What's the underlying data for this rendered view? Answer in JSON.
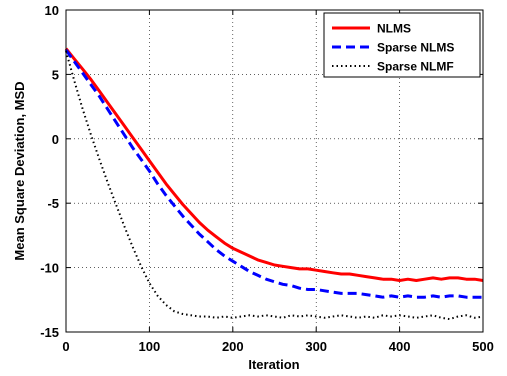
{
  "chart_data": {
    "type": "line",
    "xlabel": "Iteration",
    "ylabel": "Mean Square Deviation, MSD",
    "xlim": [
      0,
      500
    ],
    "ylim": [
      -15,
      10
    ],
    "xticks": [
      0,
      100,
      200,
      300,
      400,
      500
    ],
    "yticks": [
      -15,
      -10,
      -5,
      0,
      5,
      10
    ],
    "grid": true,
    "legend_position": "top-right",
    "series": [
      {
        "name": "NLMS",
        "color": "#ff0000",
        "style": "solid",
        "x": [
          0,
          10,
          20,
          30,
          40,
          50,
          60,
          70,
          80,
          90,
          100,
          110,
          120,
          130,
          140,
          150,
          160,
          170,
          180,
          190,
          200,
          210,
          220,
          230,
          240,
          250,
          260,
          270,
          280,
          290,
          300,
          310,
          320,
          330,
          340,
          350,
          360,
          370,
          380,
          390,
          400,
          410,
          420,
          430,
          440,
          450,
          460,
          470,
          480,
          490,
          500
        ],
        "y": [
          7,
          6.2,
          5.4,
          4.6,
          3.7,
          2.8,
          1.9,
          1.0,
          0.1,
          -0.8,
          -1.7,
          -2.6,
          -3.5,
          -4.3,
          -5.1,
          -5.8,
          -6.5,
          -7.1,
          -7.6,
          -8.1,
          -8.5,
          -8.8,
          -9.1,
          -9.4,
          -9.6,
          -9.8,
          -9.9,
          -10.0,
          -10.1,
          -10.1,
          -10.2,
          -10.3,
          -10.4,
          -10.5,
          -10.5,
          -10.6,
          -10.7,
          -10.8,
          -10.9,
          -10.9,
          -11.0,
          -10.9,
          -11.0,
          -10.9,
          -10.8,
          -10.9,
          -10.8,
          -10.8,
          -10.9,
          -10.9,
          -11.0
        ]
      },
      {
        "name": "Sparse NLMS",
        "color": "#0000ff",
        "style": "dashed",
        "x": [
          0,
          10,
          20,
          30,
          40,
          50,
          60,
          70,
          80,
          90,
          100,
          110,
          120,
          130,
          140,
          150,
          160,
          170,
          180,
          190,
          200,
          210,
          220,
          230,
          240,
          250,
          260,
          270,
          280,
          290,
          300,
          310,
          320,
          330,
          340,
          350,
          360,
          370,
          380,
          390,
          400,
          410,
          420,
          430,
          440,
          450,
          460,
          470,
          480,
          490,
          500
        ],
        "y": [
          6.9,
          6.0,
          5.1,
          4.2,
          3.3,
          2.3,
          1.3,
          0.3,
          -0.7,
          -1.6,
          -2.5,
          -3.5,
          -4.4,
          -5.2,
          -6.0,
          -6.7,
          -7.4,
          -8.0,
          -8.6,
          -9.1,
          -9.5,
          -9.9,
          -10.3,
          -10.6,
          -10.9,
          -11.1,
          -11.3,
          -11.4,
          -11.6,
          -11.7,
          -11.7,
          -11.8,
          -11.9,
          -12.0,
          -12.0,
          -12.0,
          -12.1,
          -12.2,
          -12.3,
          -12.2,
          -12.3,
          -12.2,
          -12.3,
          -12.3,
          -12.2,
          -12.3,
          -12.2,
          -12.2,
          -12.3,
          -12.3,
          -12.3
        ]
      },
      {
        "name": "Sparse NLMF",
        "color": "#000000",
        "style": "dotted",
        "x": [
          0,
          10,
          20,
          30,
          40,
          50,
          60,
          70,
          80,
          90,
          100,
          110,
          120,
          130,
          140,
          150,
          160,
          170,
          180,
          190,
          200,
          210,
          220,
          230,
          240,
          250,
          260,
          270,
          280,
          290,
          300,
          310,
          320,
          330,
          340,
          350,
          360,
          370,
          380,
          390,
          400,
          410,
          420,
          430,
          440,
          450,
          460,
          470,
          480,
          490,
          500
        ],
        "y": [
          6.8,
          4.5,
          2.3,
          0.3,
          -1.6,
          -3.4,
          -5.1,
          -6.8,
          -8.4,
          -9.9,
          -11.2,
          -12.2,
          -12.9,
          -13.4,
          -13.6,
          -13.7,
          -13.8,
          -13.8,
          -13.9,
          -13.8,
          -13.9,
          -13.8,
          -13.7,
          -13.8,
          -13.7,
          -13.8,
          -13.9,
          -13.7,
          -13.8,
          -13.7,
          -13.8,
          -13.9,
          -13.8,
          -13.7,
          -13.8,
          -13.9,
          -13.8,
          -13.9,
          -13.7,
          -13.8,
          -13.7,
          -13.8,
          -13.9,
          -13.8,
          -13.7,
          -13.9,
          -14.0,
          -13.8,
          -13.7,
          -13.9,
          -13.8
        ]
      }
    ]
  }
}
